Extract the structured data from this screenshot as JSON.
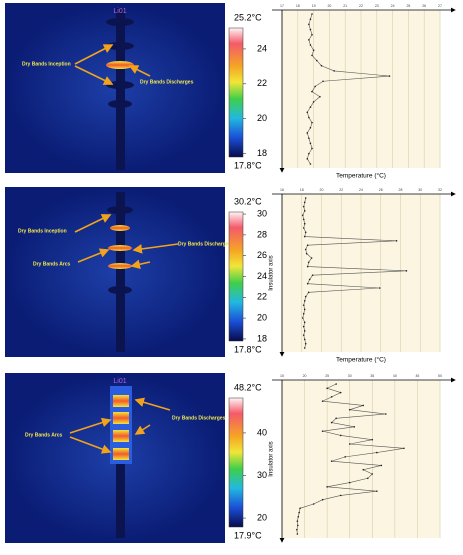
{
  "panels": [
    {
      "image": {
        "label": "Li01",
        "annotations": [
          "Dry Bands Inception",
          "Dry Bands Discharges"
        ],
        "colorbar": {
          "range": [
            {
              "value": 17.8,
              "label": "17.8°C"
            },
            {
              "value": 25.2,
              "label": "25.2°C"
            }
          ],
          "ticks": [
            18,
            20,
            22,
            24
          ]
        }
      },
      "profile": {
        "xlabel": "Temperature (°C)",
        "xlim": [
          17,
          27
        ],
        "xticks": [
          17,
          18,
          19,
          20,
          21,
          22,
          23,
          24,
          25,
          26,
          27
        ],
        "values": [
          18.9,
          18.8,
          18.7,
          18.8,
          18.9,
          18.7,
          18.8,
          19.0,
          18.9,
          19.2,
          19.5,
          20.3,
          23.8,
          19.6,
          19.1,
          18.9,
          19.4,
          19.0,
          18.8,
          18.6,
          18.7,
          18.9,
          18.8,
          18.6,
          18.7,
          18.8,
          18.9,
          18.7,
          18.6,
          18.8
        ]
      }
    },
    {
      "image": {
        "annotations": [
          "Dry Bands Inception",
          "Dry Bands Discharges",
          "Dry Bands Arcs"
        ],
        "colorbar": {
          "range": [
            {
              "value": 17.8,
              "label": "17.8°C"
            },
            {
              "value": 30.2,
              "label": "30.2°C"
            }
          ],
          "ticks": [
            18,
            20,
            22,
            24,
            26,
            28,
            30
          ]
        }
      },
      "profile": {
        "xlabel": "Temperature (°C)",
        "ylabel": "Insulator axis",
        "xlim": [
          16,
          32
        ],
        "xticks": [
          16,
          18,
          20,
          22,
          24,
          26,
          28,
          30,
          32
        ],
        "values": [
          18.4,
          18.3,
          18.2,
          18.3,
          18.1,
          18.2,
          18.3,
          18.2,
          18.4,
          18.3,
          27.6,
          18.6,
          18.4,
          18.5,
          19.0,
          18.7,
          18.6,
          28.6,
          19.1,
          18.8,
          18.6,
          25.9,
          18.7,
          18.4,
          18.3,
          18.2,
          18.3,
          18.2,
          18.1,
          18.3,
          18.2,
          18.3,
          18.2,
          18.3,
          18.4,
          18.3
        ]
      }
    },
    {
      "image": {
        "label": "Li01",
        "annotations": [
          "Dry Bands Discharges",
          "Dry Bands Arcs"
        ],
        "colorbar": {
          "range": [
            {
              "value": 17.9,
              "label": "17.9°C"
            },
            {
              "value": 48.2,
              "label": "48.2°C"
            }
          ],
          "ticks": [
            20,
            30,
            40
          ]
        }
      },
      "profile": {
        "ylabel": "Insulator axis",
        "xlim": [
          15,
          50
        ],
        "xticks": [
          15,
          20,
          25,
          30,
          35,
          40,
          45,
          50
        ],
        "values": [
          27,
          25,
          28,
          26,
          24,
          33,
          30,
          38,
          27,
          26,
          31,
          24,
          28,
          35,
          30,
          42,
          36,
          29,
          26,
          37,
          33,
          35,
          34,
          30,
          25,
          36,
          28,
          24,
          22,
          19,
          18.8,
          18.6,
          18.4,
          18.5,
          18.3,
          18.4
        ]
      }
    }
  ]
}
